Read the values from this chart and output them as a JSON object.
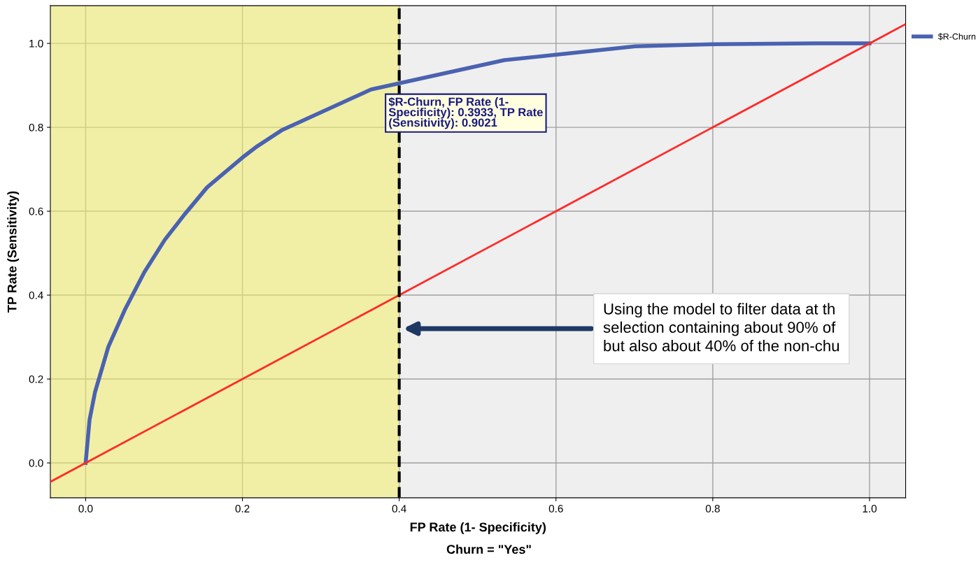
{
  "chart_data": {
    "type": "line",
    "xlabel": "FP Rate (1- Specificity)",
    "ylabel": "TP Rate (Sensitivity)",
    "series": [
      {
        "name": "$R-Churn",
        "color": "#4a62b0",
        "x": [
          0,
          0.005,
          0.012,
          0.029,
          0.05,
          0.075,
          0.101,
          0.126,
          0.155,
          0.2,
          0.219,
          0.251,
          0.364,
          0.3933,
          0.534,
          0.6,
          0.701,
          0.801,
          0.929,
          1.0
        ],
        "values": [
          0,
          0.103,
          0.169,
          0.277,
          0.365,
          0.455,
          0.532,
          0.592,
          0.657,
          0.728,
          0.755,
          0.794,
          0.89,
          0.9021,
          0.96,
          0.973,
          0.993,
          0.998,
          1.0,
          1.0
        ]
      },
      {
        "color": "#ff2a2a",
        "x": [
          -0.045,
          1.045
        ],
        "values": [
          -0.045,
          1.045
        ]
      }
    ],
    "xlim": [
      -0.045,
      1.046
    ],
    "ylim": [
      -0.083,
      1.09
    ],
    "xticks": [
      {
        "value": 0,
        "label": "0.0"
      },
      0.2,
      0.4,
      0.6,
      0.8,
      {
        "value": 1,
        "label": "1.0"
      }
    ],
    "yticks": [
      {
        "value": 0,
        "label": "0.0"
      },
      0.2,
      0.4,
      0.6,
      0.8,
      {
        "value": 1,
        "label": "1.0"
      }
    ],
    "bands": [
      {
        "axis": "x",
        "from": -0.045,
        "to": 0.4,
        "color": "#f2ef6a"
      }
    ],
    "ref_lines": [
      {
        "axis": "x",
        "value": 0.4,
        "color": "#000000",
        "line_style": "dashed"
      }
    ],
    "annotations": [
      {
        "text": "$R-Churn, FP Rate (1-\nSpecificity): 0.3933, TP Rate\n(Sensitivity): 0.9021",
        "x": 0.3933,
        "y": 0.9021
      },
      "Using the model to filter data at th\nselection containing about 90% of\nbut also about 40% of the non-chu",
      "Churn = \"Yes\""
    ],
    "grid": true,
    "legend": "top right",
    "marker": "none",
    "line_style": "solid"
  }
}
